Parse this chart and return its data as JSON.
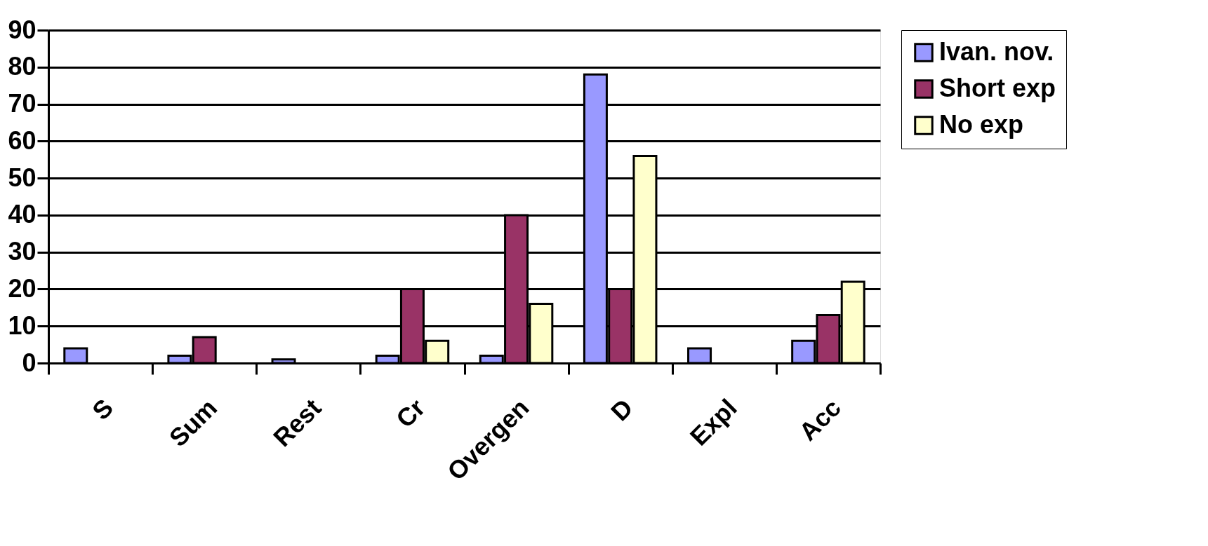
{
  "chart_data": {
    "type": "bar",
    "categories": [
      "S",
      "Sum",
      "Rest",
      "Cr",
      "Overgen",
      "D",
      "Expl",
      "Acc"
    ],
    "series": [
      {
        "name": "Ivan. nov.",
        "color": "#9999ff",
        "values": [
          4,
          2,
          1,
          2,
          2,
          78,
          4,
          6
        ]
      },
      {
        "name": "Short exp",
        "color": "#993366",
        "values": [
          null,
          7,
          null,
          20,
          40,
          20,
          null,
          13
        ]
      },
      {
        "name": "No exp",
        "color": "#ffffcc",
        "values": [
          null,
          null,
          null,
          6,
          16,
          56,
          null,
          22
        ]
      }
    ],
    "ylim": [
      0,
      90
    ],
    "yticks": [
      0,
      10,
      20,
      30,
      40,
      50,
      60,
      70,
      80,
      90
    ],
    "grid": "y",
    "legend": "right"
  }
}
